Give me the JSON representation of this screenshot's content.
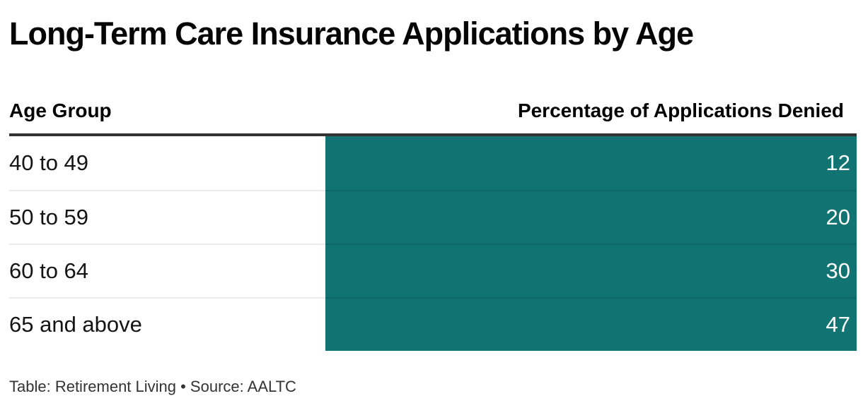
{
  "title": "Long-Term Care Insurance Applications by Age",
  "table": {
    "columns": [
      "Age Group",
      "Percentage of Applications Denied"
    ],
    "rows": [
      {
        "age_group": "40 to 49",
        "percent_denied": "12"
      },
      {
        "age_group": "50 to 59",
        "percent_denied": "20"
      },
      {
        "age_group": "60 to 64",
        "percent_denied": "30"
      },
      {
        "age_group": "65 and above",
        "percent_denied": "47"
      }
    ]
  },
  "caption": "Table: Retirement Living • Source: AALTC",
  "colors": {
    "bar_fill": "#117473",
    "value_text": "#ffffff",
    "header_rule": "#333333",
    "row_divider": "#ececec",
    "title_text": "#050505",
    "caption_text": "#333333"
  },
  "chart_data": {
    "type": "table",
    "title": "Long-Term Care Insurance Applications by Age",
    "columns": [
      "Age Group",
      "Percentage of Applications Denied"
    ],
    "categories": [
      "40 to 49",
      "50 to 59",
      "60 to 64",
      "65 and above"
    ],
    "values": [
      12,
      20,
      30,
      47
    ],
    "value_unit": "percent",
    "credit": "Table: Retirement Living",
    "source": "AALTC",
    "layout_hints": {
      "bar_column_filled": true,
      "bar_color": "#117473",
      "values_right_aligned": true,
      "grid": "horizontal row dividers only"
    }
  }
}
